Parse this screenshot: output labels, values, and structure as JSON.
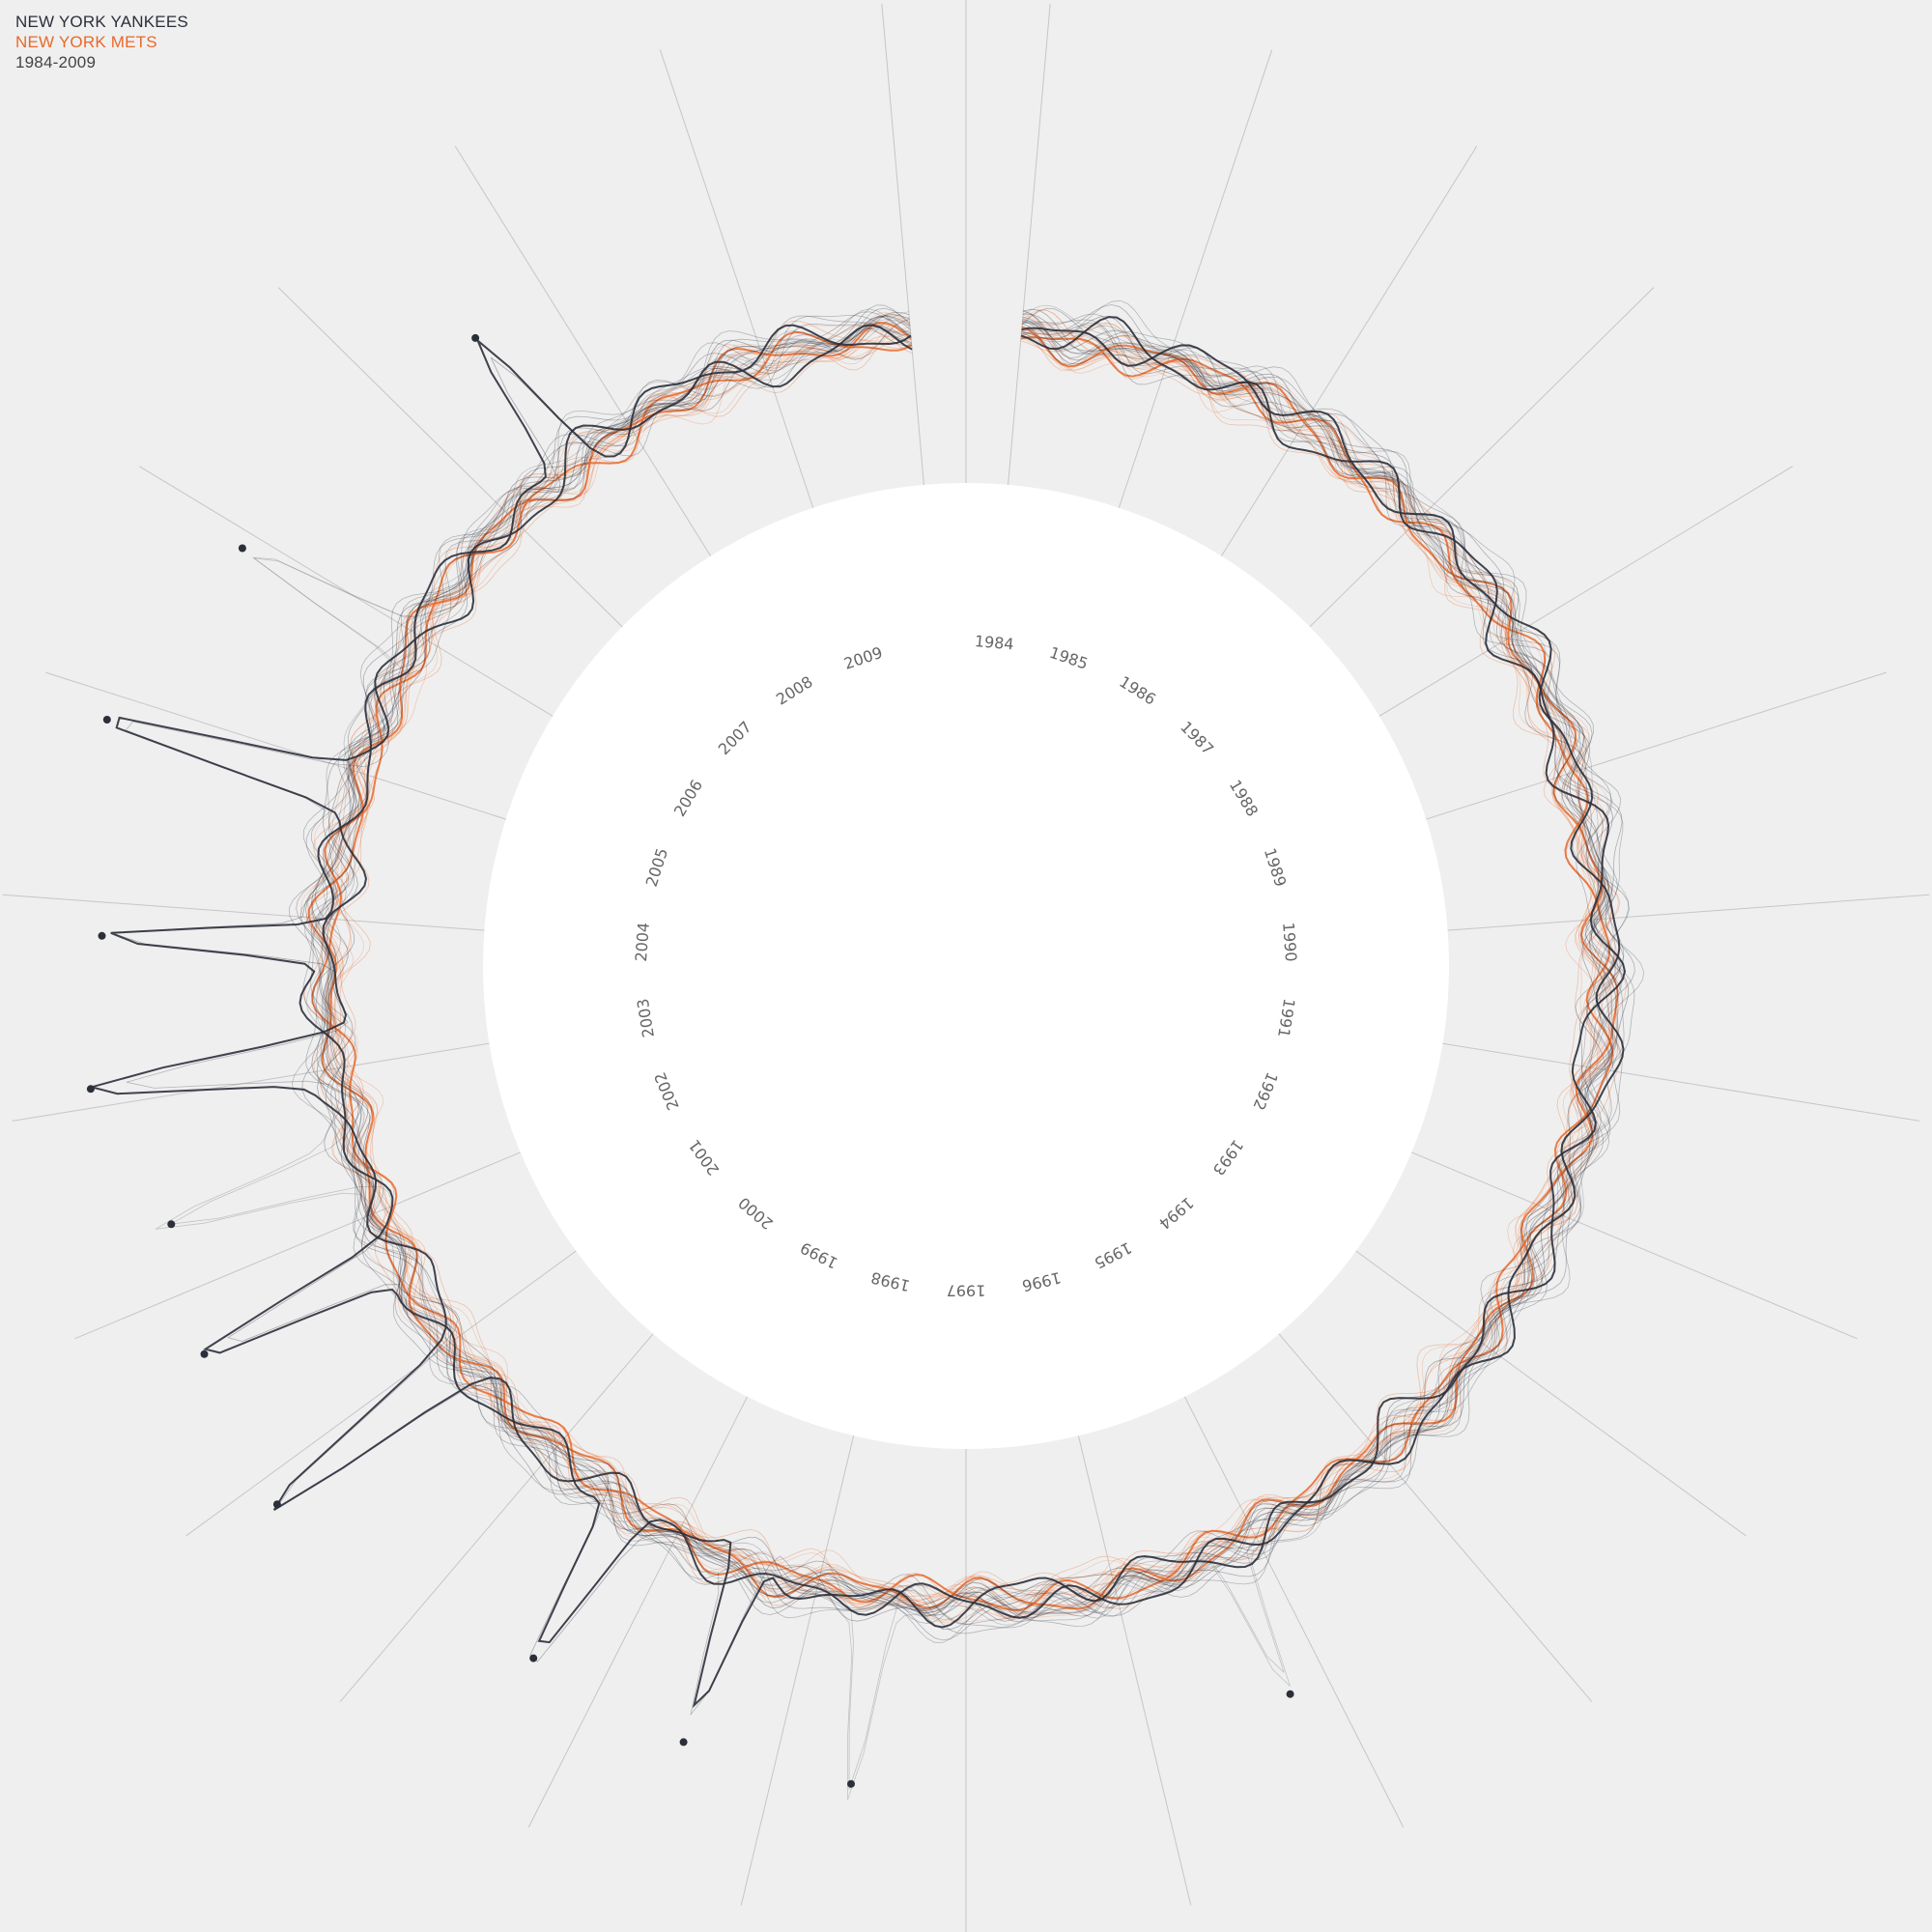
{
  "legend": {
    "team_a": "NEW YORK YANKEES",
    "team_b": "NEW YORK METS",
    "range": "1984-2009"
  },
  "colors": {
    "background": "#efefef",
    "inner_disc": "#ffffff",
    "team_a": "#2b2f3a",
    "team_b": "#e8692b",
    "spoke": "#c6c6c6"
  },
  "chart_data": {
    "type": "radial line",
    "x": [
      "1984",
      "1985",
      "1986",
      "1987",
      "1988",
      "1989",
      "1990",
      "1991",
      "1992",
      "1993",
      "1994",
      "1995",
      "1996",
      "1997",
      "1998",
      "1999",
      "2000",
      "2001",
      "2002",
      "2003",
      "2004",
      "2005",
      "2006",
      "2007",
      "2008",
      "2009"
    ],
    "series": [
      {
        "name": "NEW YORK YANKEES"
      },
      {
        "name": "NEW YORK METS"
      }
    ]
  }
}
